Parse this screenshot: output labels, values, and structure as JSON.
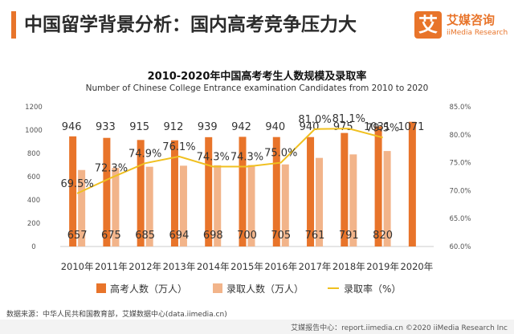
{
  "header": {
    "title": "中国留学背景分析：国内高考竞争压力大"
  },
  "logo": {
    "mark": "艾",
    "name": "艾媒咨询",
    "subtitle": "iiMedia Research"
  },
  "chart_data": {
    "type": "bar",
    "title": "2010-2020年中国高考考生人数规模及录取率",
    "subtitle": "Number of Chinese College Entrance examination Candidates from 2010 to 2020",
    "categories": [
      "2010年",
      "2011年",
      "2012年",
      "2013年",
      "2014年",
      "2015年",
      "2016年",
      "2017年",
      "2018年",
      "2019年",
      "2020年"
    ],
    "series": [
      {
        "name": "高考人数（万人）",
        "type": "bar",
        "color": "#e8742a",
        "axis": "left",
        "values": [
          946,
          933,
          915,
          912,
          939,
          942,
          940,
          940,
          975,
          1031,
          1071
        ]
      },
      {
        "name": "录取人数（万人）",
        "type": "bar",
        "color": "#f2b48a",
        "axis": "left",
        "values": [
          657,
          675,
          685,
          694,
          698,
          700,
          705,
          761,
          791,
          820,
          null
        ]
      },
      {
        "name": "录取率（%）",
        "type": "line",
        "color": "#f0c020",
        "axis": "right",
        "values": [
          69.5,
          72.3,
          74.9,
          76.1,
          74.3,
          74.3,
          75.0,
          81.0,
          81.1,
          79.5,
          null
        ]
      }
    ],
    "bar_labels": [
      "946",
      "933",
      "915",
      "912",
      "939",
      "942",
      "940",
      "940",
      "975",
      "1031",
      "1071"
    ],
    "admit_labels": [
      "657",
      "675",
      "685",
      "694",
      "698",
      "700",
      "705",
      "761",
      "791",
      "820",
      ""
    ],
    "rate_labels": [
      "69.5%",
      "72.3%",
      "74.9%",
      "76.1%",
      "74.3%",
      "74.3%",
      "75.0%",
      "81.0%",
      "81.1%",
      "79.5%",
      ""
    ],
    "y_left": {
      "min": 0,
      "max": 1200,
      "ticks": [
        "0",
        "200",
        "400",
        "600",
        "800",
        "1000",
        "1200"
      ]
    },
    "y_right": {
      "min": 60,
      "max": 85,
      "ticks": [
        "60.0%",
        "65.0%",
        "70.0%",
        "75.0%",
        "80.0%",
        "85.0%"
      ]
    },
    "legend_position": "bottom"
  },
  "source": "数据来源：中华人民共和国教育部，艾媒数据中心(data.iimedia.cn)",
  "footer": "艾媒报告中心：report.iimedia.cn   ©2020  iiMedia Research  Inc"
}
